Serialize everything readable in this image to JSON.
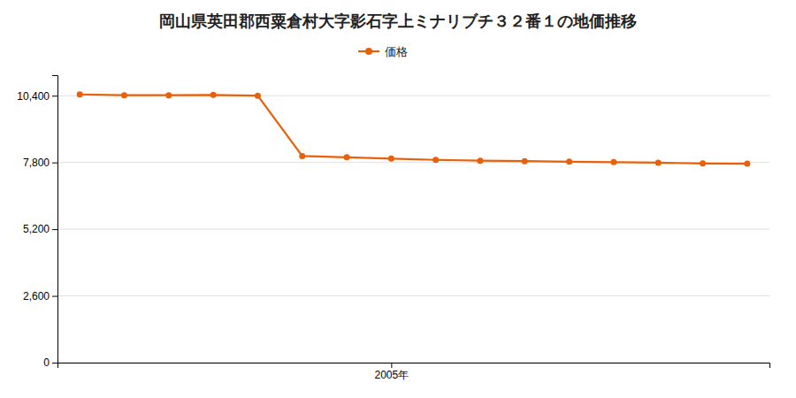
{
  "chart_data": {
    "type": "line",
    "title": "岡山県英田郡西粟倉村大字影石字上ミナリブチ３２番１の地価推移",
    "x": [
      1998,
      1999,
      2000,
      2001,
      2002,
      2003,
      2004,
      2005,
      2006,
      2007,
      2008,
      2009,
      2010,
      2011,
      2012,
      2013
    ],
    "series": [
      {
        "name": "価格",
        "color": "#e8600a",
        "marker": "circle",
        "values": [
          10450,
          10420,
          10420,
          10430,
          10400,
          8050,
          8000,
          7950,
          7900,
          7870,
          7850,
          7830,
          7810,
          7790,
          7760,
          7750
        ]
      }
    ],
    "xlim": [
      1997.5,
      2013.5
    ],
    "xticks": [
      {
        "value": 2005,
        "label": "2005年"
      }
    ],
    "ylim": [
      0,
      11200
    ],
    "yticks": [
      0,
      {
        "value": 2600,
        "label": "2,600"
      },
      {
        "value": 5200,
        "label": "5,200"
      },
      {
        "value": 7800,
        "label": "7,800"
      },
      {
        "value": 10400,
        "label": "10,400"
      }
    ],
    "grid": true,
    "legend": "top"
  }
}
